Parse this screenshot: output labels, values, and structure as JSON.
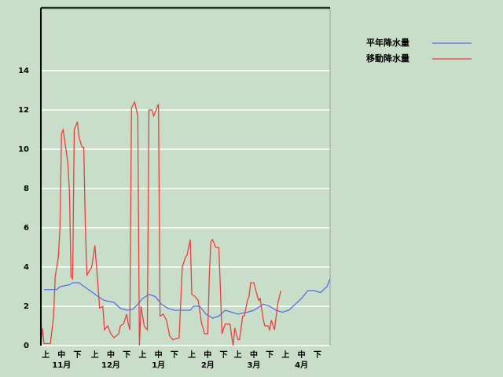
{
  "chart_data": {
    "type": "line",
    "xlim": [
      0,
      182
    ],
    "ylim": [
      0,
      17.2
    ],
    "yticks": [
      0,
      2,
      4,
      6,
      8,
      10,
      12,
      14
    ],
    "xticks": [
      {
        "value": 3,
        "label": "上"
      },
      {
        "value": 13,
        "label": "中"
      },
      {
        "value": 23,
        "label": "下"
      },
      {
        "value": 34,
        "label": "上"
      },
      {
        "value": 44,
        "label": "中"
      },
      {
        "value": 54,
        "label": "下"
      },
      {
        "value": 64,
        "label": "上"
      },
      {
        "value": 74,
        "label": "中"
      },
      {
        "value": 84,
        "label": "下"
      },
      {
        "value": 95,
        "label": "上"
      },
      {
        "value": 105,
        "label": "中"
      },
      {
        "value": 115,
        "label": "下"
      },
      {
        "value": 124,
        "label": "上"
      },
      {
        "value": 134,
        "label": "中"
      },
      {
        "value": 144,
        "label": "下"
      },
      {
        "value": 154,
        "label": "上"
      },
      {
        "value": 164,
        "label": "中"
      },
      {
        "value": 174,
        "label": "下"
      }
    ],
    "month_ticks": [
      {
        "value": 13,
        "label": "11月"
      },
      {
        "value": 44,
        "label": "12月"
      },
      {
        "value": 74,
        "label": "1月"
      },
      {
        "value": 105,
        "label": "2月"
      },
      {
        "value": 134,
        "label": "3月"
      },
      {
        "value": 164,
        "label": "4月"
      }
    ],
    "grid": true,
    "legend": "right",
    "series": [
      {
        "name": "平年降水量",
        "color": "#5a6ee6",
        "x": [
          2,
          10,
          12,
          18,
          20,
          24,
          30,
          36,
          40,
          46,
          50,
          54,
          58,
          62,
          64,
          68,
          72,
          76,
          80,
          84,
          94,
          96,
          100,
          104,
          108,
          112,
          116,
          120,
          124,
          130,
          134,
          140,
          144,
          148,
          152,
          156,
          164,
          168,
          172,
          176,
          180,
          182
        ],
        "values": [
          2.85,
          2.85,
          3.0,
          3.1,
          3.2,
          3.2,
          2.85,
          2.5,
          2.3,
          2.2,
          1.9,
          1.8,
          1.85,
          2.2,
          2.4,
          2.6,
          2.5,
          2.1,
          1.9,
          1.8,
          1.8,
          2.0,
          2.0,
          1.6,
          1.4,
          1.5,
          1.8,
          1.7,
          1.6,
          1.7,
          1.8,
          2.1,
          2.0,
          1.8,
          1.7,
          1.8,
          2.4,
          2.8,
          2.8,
          2.7,
          3.0,
          3.4
        ]
      },
      {
        "name": "移動降水量",
        "color": "#e84040",
        "x": [
          0,
          1,
          2,
          6,
          8,
          9,
          11,
          12,
          13,
          14,
          17,
          18,
          19,
          20,
          21,
          23,
          24,
          26,
          27,
          28,
          29,
          32,
          34,
          36,
          37,
          39,
          40,
          42,
          44,
          46,
          49,
          50,
          52,
          54,
          55,
          56,
          57,
          59,
          61,
          62,
          63,
          65,
          67,
          68,
          70,
          71,
          74,
          75,
          77,
          79,
          81,
          83,
          87,
          89,
          91,
          92,
          94,
          95,
          97,
          99,
          101,
          103,
          105,
          106,
          107,
          108,
          110,
          112,
          114,
          116,
          119,
          120,
          121,
          122,
          124,
          125,
          127,
          128,
          130,
          131,
          132,
          134,
          135,
          137,
          138,
          140,
          141,
          143,
          144,
          145,
          147,
          149,
          151
        ],
        "values": [
          0,
          0.9,
          0.1,
          0.1,
          1.5,
          3.5,
          4.5,
          6,
          10.8,
          11,
          9.3,
          7.8,
          3.5,
          3.4,
          11,
          11.4,
          10.6,
          10.1,
          10.1,
          6,
          3.6,
          4,
          5.1,
          3,
          1.9,
          2,
          0.8,
          1,
          0.6,
          0.4,
          0.6,
          1,
          1.1,
          1.6,
          1.1,
          0.8,
          12.1,
          12.4,
          11.7,
          0,
          2,
          1,
          0.8,
          12,
          12,
          11.7,
          12.3,
          1.5,
          1.6,
          1.3,
          0.5,
          0.3,
          0.4,
          4,
          4.5,
          4.6,
          5.4,
          2.6,
          2.5,
          2.3,
          1.2,
          0.6,
          0.6,
          3.6,
          5.3,
          5.4,
          5,
          5,
          0.6,
          1.1,
          1.1,
          0.5,
          0,
          0.9,
          0.3,
          0.3,
          1.5,
          1.5,
          2.3,
          2.5,
          3.2,
          3.2,
          2.9,
          2.3,
          2.4,
          1.3,
          1,
          1,
          0.8,
          1.3,
          0.8,
          2.1,
          2.8
        ]
      }
    ]
  }
}
